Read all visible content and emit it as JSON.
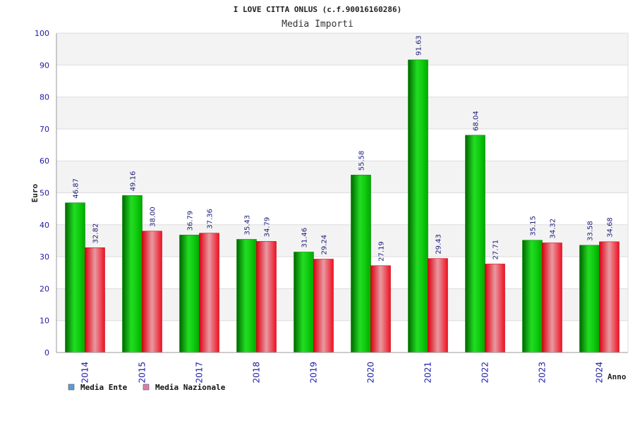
{
  "chart_data": {
    "type": "bar",
    "title": "I LOVE CITTA ONLUS (c.f.90016160286)",
    "subtitle": "Media Importi",
    "xlabel": "Anno",
    "ylabel": "Euro",
    "ylim": [
      0,
      100
    ],
    "yticks": [
      "0",
      "10",
      "20",
      "30",
      "40",
      "50",
      "60",
      "70",
      "80",
      "90",
      "100"
    ],
    "categories": [
      "2014",
      "2015",
      "2017",
      "2018",
      "2019",
      "2020",
      "2021",
      "2022",
      "2023",
      "2024"
    ],
    "series": [
      {
        "name": "Media Ente",
        "values": [
          46.87,
          49.16,
          36.79,
          35.43,
          31.46,
          55.58,
          91.63,
          68.04,
          35.15,
          33.58
        ],
        "labels": [
          "46.87",
          "49.16",
          "36.79",
          "35.43",
          "31.46",
          "55.58",
          "91.63",
          "68.04",
          "35.15",
          "33.58"
        ],
        "color": "#00bb00",
        "legend_color": "#5b9bd5"
      },
      {
        "name": "Media Nazionale",
        "values": [
          32.82,
          38.0,
          37.36,
          34.79,
          29.24,
          27.19,
          29.43,
          27.71,
          34.32,
          34.68
        ],
        "labels": [
          "32.82",
          "38.00",
          "37.36",
          "34.79",
          "29.24",
          "27.19",
          "29.43",
          "27.71",
          "34.32",
          "34.68"
        ],
        "color": "#ee1122",
        "legend_color": "#d97fae"
      }
    ],
    "grid": true,
    "legend_position": "bottom-left"
  }
}
